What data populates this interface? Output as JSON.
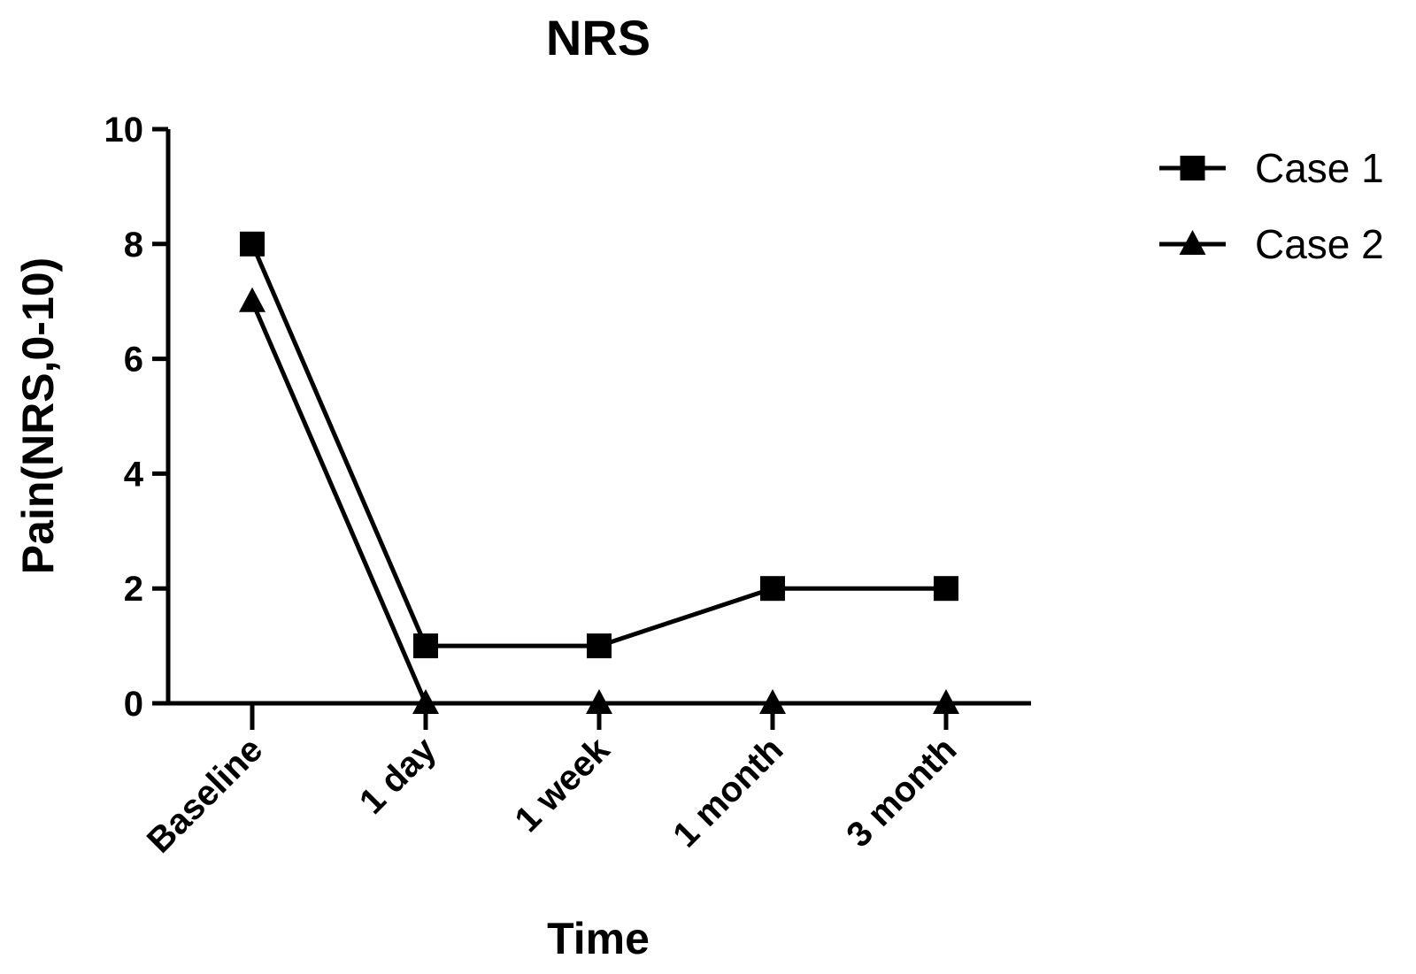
{
  "chart_data": {
    "type": "line",
    "title": "NRS",
    "xlabel": "Time",
    "ylabel": "Pain(NRS,0-10)",
    "categories": [
      "Baseline",
      "1 day",
      "1 week",
      "1 month",
      "3 month"
    ],
    "ylim": [
      0,
      10
    ],
    "yticks": [
      0,
      2,
      4,
      6,
      8,
      10
    ],
    "grid": false,
    "legend_position": "top-right",
    "series": [
      {
        "name": "Case 1",
        "marker": "square",
        "values": [
          8,
          1,
          1,
          2,
          2
        ]
      },
      {
        "name": "Case 2",
        "marker": "triangle",
        "values": [
          7,
          0,
          0,
          0,
          0
        ]
      }
    ],
    "colors": {
      "line": "#000000",
      "marker": "#000000"
    }
  }
}
